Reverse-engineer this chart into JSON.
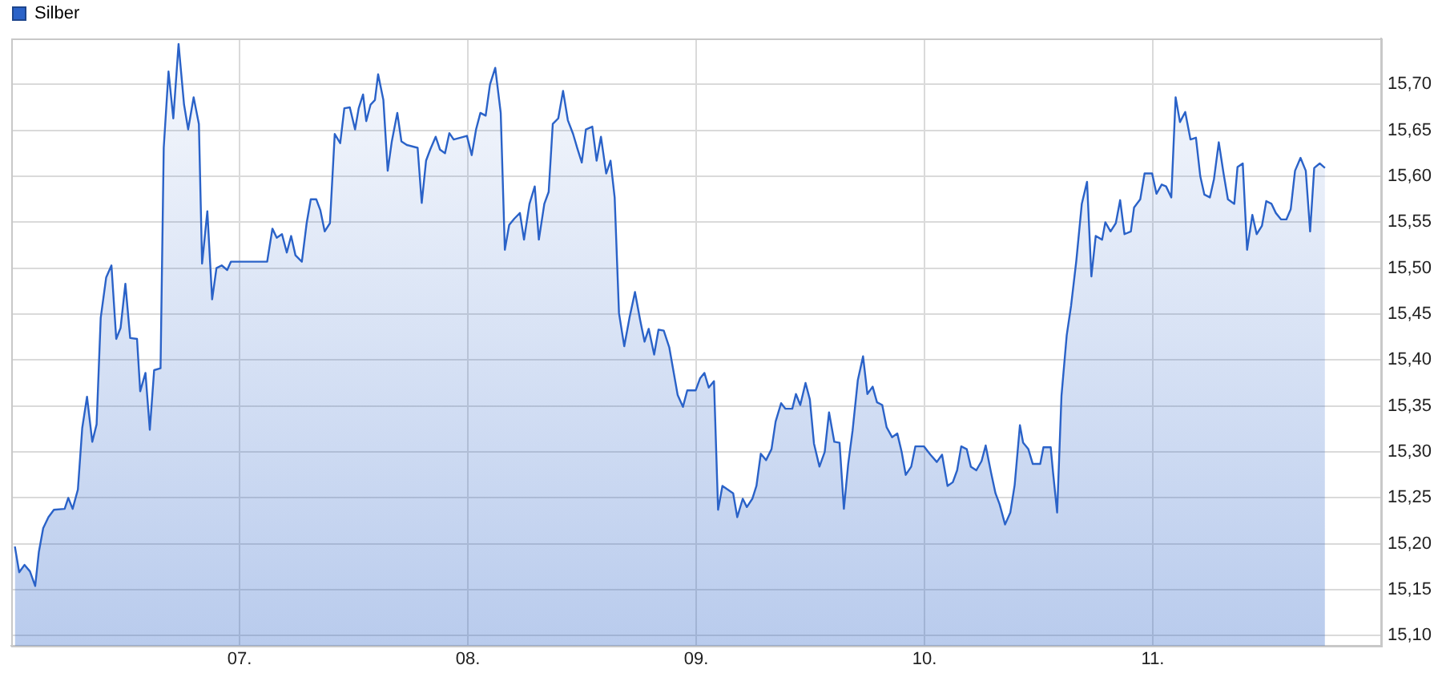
{
  "chart_data": {
    "type": "area",
    "legend": "top left",
    "grid": true,
    "xlim": [
      6,
      12
    ],
    "xticks": [
      {
        "value": 7,
        "label": "07."
      },
      {
        "value": 8,
        "label": "08."
      },
      {
        "value": 9,
        "label": "09."
      },
      {
        "value": 10,
        "label": "10."
      },
      {
        "value": 11,
        "label": "11."
      }
    ],
    "ylim": [
      15.089,
      15.75
    ],
    "yticks": [
      {
        "value": 15.1,
        "label": "15,10"
      },
      {
        "value": 15.15,
        "label": "15,15"
      },
      {
        "value": 15.2,
        "label": "15,20"
      },
      {
        "value": 15.25,
        "label": "15,25"
      },
      {
        "value": 15.3,
        "label": "15,30"
      },
      {
        "value": 15.35,
        "label": "15,35"
      },
      {
        "value": 15.4,
        "label": "15,40"
      },
      {
        "value": 15.45,
        "label": "15,45"
      },
      {
        "value": 15.5,
        "label": "15,50"
      },
      {
        "value": 15.55,
        "label": "15,55"
      },
      {
        "value": 15.6,
        "label": "15,60"
      },
      {
        "value": 15.65,
        "label": "15,65"
      },
      {
        "value": 15.7,
        "label": "15,70"
      }
    ],
    "x": [
      6.016,
      6.035,
      6.058,
      6.082,
      6.105,
      6.121,
      6.14,
      6.163,
      6.187,
      6.234,
      6.25,
      6.269,
      6.292,
      6.311,
      6.332,
      6.355,
      6.374,
      6.392,
      6.416,
      6.439,
      6.46,
      6.479,
      6.5,
      6.521,
      6.551,
      6.565,
      6.588,
      6.607,
      6.626,
      6.654,
      6.668,
      6.689,
      6.71,
      6.733,
      6.757,
      6.775,
      6.799,
      6.822,
      6.836,
      6.859,
      6.88,
      6.899,
      6.922,
      6.946,
      6.962,
      7.121,
      7.144,
      7.163,
      7.186,
      7.207,
      7.226,
      7.245,
      7.273,
      7.294,
      7.312,
      7.336,
      7.354,
      7.373,
      7.396,
      7.417,
      7.441,
      7.459,
      7.483,
      7.506,
      7.522,
      7.541,
      7.555,
      7.574,
      7.593,
      7.607,
      7.63,
      7.649,
      7.667,
      7.691,
      7.709,
      7.733,
      7.78,
      7.798,
      7.817,
      7.835,
      7.859,
      7.878,
      7.9,
      7.919,
      7.938,
      7.996,
      8.017,
      8.036,
      8.055,
      8.078,
      8.097,
      8.12,
      8.144,
      8.162,
      8.181,
      8.204,
      8.228,
      8.246,
      8.27,
      8.293,
      8.311,
      8.335,
      8.354,
      8.372,
      8.396,
      8.417,
      8.438,
      8.461,
      8.48,
      8.499,
      8.517,
      8.545,
      8.564,
      8.583,
      8.606,
      8.625,
      8.643,
      8.662,
      8.685,
      8.708,
      8.732,
      8.755,
      8.774,
      8.792,
      8.816,
      8.835,
      8.858,
      8.882,
      8.919,
      8.942,
      8.961,
      8.998,
      9.017,
      9.036,
      9.055,
      9.078,
      9.096,
      9.115,
      9.138,
      9.162,
      9.18,
      9.204,
      9.222,
      9.246,
      9.264,
      9.283,
      9.306,
      9.33,
      9.348,
      9.372,
      9.391,
      9.421,
      9.437,
      9.456,
      9.479,
      9.498,
      9.516,
      9.54,
      9.563,
      9.582,
      9.605,
      9.628,
      9.647,
      9.666,
      9.685,
      9.708,
      9.731,
      9.75,
      9.773,
      9.792,
      9.815,
      9.834,
      9.858,
      9.881,
      9.9,
      9.918,
      9.942,
      9.96,
      9.998,
      10.026,
      10.054,
      10.077,
      10.101,
      10.124,
      10.143,
      10.161,
      10.185,
      10.203,
      10.227,
      10.25,
      10.268,
      10.292,
      10.311,
      10.329,
      10.353,
      10.376,
      10.395,
      10.418,
      10.432,
      10.455,
      10.474,
      10.507,
      10.521,
      10.553,
      10.563,
      10.581,
      10.6,
      10.623,
      10.642,
      10.665,
      10.689,
      10.712,
      10.731,
      10.75,
      10.778,
      10.792,
      10.815,
      10.838,
      10.857,
      10.876,
      10.904,
      10.918,
      10.945,
      10.964,
      10.997,
      11.016,
      11.039,
      11.058,
      11.081,
      11.1,
      11.119,
      11.142,
      11.165,
      11.189,
      11.208,
      11.226,
      11.25,
      11.268,
      11.289,
      11.31,
      11.329,
      11.357,
      11.371,
      11.394,
      11.413,
      11.436,
      11.455,
      11.478,
      11.497,
      11.52,
      11.539,
      11.562,
      11.585,
      11.604,
      11.623,
      11.647,
      11.67,
      11.689,
      11.707,
      11.731,
      11.754
    ],
    "series": [
      {
        "name": "Silber",
        "color": "#2a62c8",
        "values": [
          15.197,
          15.169,
          15.177,
          15.17,
          15.154,
          15.191,
          15.217,
          15.229,
          15.237,
          15.238,
          15.25,
          15.238,
          15.259,
          15.326,
          15.36,
          15.311,
          15.33,
          15.446,
          15.49,
          15.503,
          15.423,
          15.435,
          15.483,
          15.424,
          15.423,
          15.366,
          15.386,
          15.324,
          15.389,
          15.391,
          15.631,
          15.714,
          15.663,
          15.744,
          15.678,
          15.651,
          15.686,
          15.657,
          15.505,
          15.562,
          15.466,
          15.5,
          15.503,
          15.498,
          15.507,
          15.507,
          15.543,
          15.533,
          15.537,
          15.517,
          15.535,
          15.514,
          15.507,
          15.549,
          15.575,
          15.575,
          15.563,
          15.54,
          15.549,
          15.646,
          15.636,
          15.674,
          15.675,
          15.651,
          15.674,
          15.689,
          15.66,
          15.678,
          15.683,
          15.711,
          15.683,
          15.606,
          15.638,
          15.669,
          15.638,
          15.634,
          15.631,
          15.571,
          15.617,
          15.629,
          15.643,
          15.629,
          15.625,
          15.647,
          15.64,
          15.644,
          15.623,
          15.651,
          15.669,
          15.666,
          15.7,
          15.718,
          15.669,
          15.52,
          15.547,
          15.554,
          15.56,
          15.531,
          15.57,
          15.589,
          15.531,
          15.57,
          15.583,
          15.657,
          15.663,
          15.693,
          15.661,
          15.646,
          15.63,
          15.615,
          15.651,
          15.654,
          15.617,
          15.643,
          15.603,
          15.617,
          15.577,
          15.451,
          15.415,
          15.446,
          15.474,
          15.443,
          15.42,
          15.434,
          15.406,
          15.433,
          15.432,
          15.414,
          15.362,
          15.349,
          15.367,
          15.367,
          15.38,
          15.386,
          15.37,
          15.377,
          15.237,
          15.263,
          15.259,
          15.255,
          15.229,
          15.249,
          15.24,
          15.249,
          15.263,
          15.298,
          15.291,
          15.303,
          15.333,
          15.353,
          15.347,
          15.347,
          15.363,
          15.351,
          15.375,
          15.357,
          15.309,
          15.284,
          15.3,
          15.343,
          15.311,
          15.31,
          15.238,
          15.287,
          15.323,
          15.378,
          15.404,
          15.363,
          15.371,
          15.354,
          15.351,
          15.327,
          15.316,
          15.32,
          15.3,
          15.275,
          15.284,
          15.306,
          15.306,
          15.297,
          15.289,
          15.297,
          15.263,
          15.267,
          15.28,
          15.306,
          15.303,
          15.284,
          15.28,
          15.29,
          15.307,
          15.277,
          15.255,
          15.243,
          15.221,
          15.234,
          15.264,
          15.329,
          15.31,
          15.303,
          15.287,
          15.287,
          15.305,
          15.305,
          15.278,
          15.234,
          15.361,
          15.427,
          15.459,
          15.508,
          15.57,
          15.594,
          15.491,
          15.535,
          15.531,
          15.55,
          15.54,
          15.549,
          15.574,
          15.537,
          15.54,
          15.566,
          15.575,
          15.603,
          15.603,
          15.581,
          15.591,
          15.589,
          15.577,
          15.686,
          15.659,
          15.67,
          15.64,
          15.642,
          15.6,
          15.58,
          15.577,
          15.597,
          15.637,
          15.603,
          15.575,
          15.57,
          15.61,
          15.614,
          15.52,
          15.558,
          15.537,
          15.546,
          15.573,
          15.57,
          15.56,
          15.553,
          15.553,
          15.564,
          15.606,
          15.62,
          15.606,
          15.54,
          15.609,
          15.614,
          15.609
        ]
      }
    ]
  }
}
